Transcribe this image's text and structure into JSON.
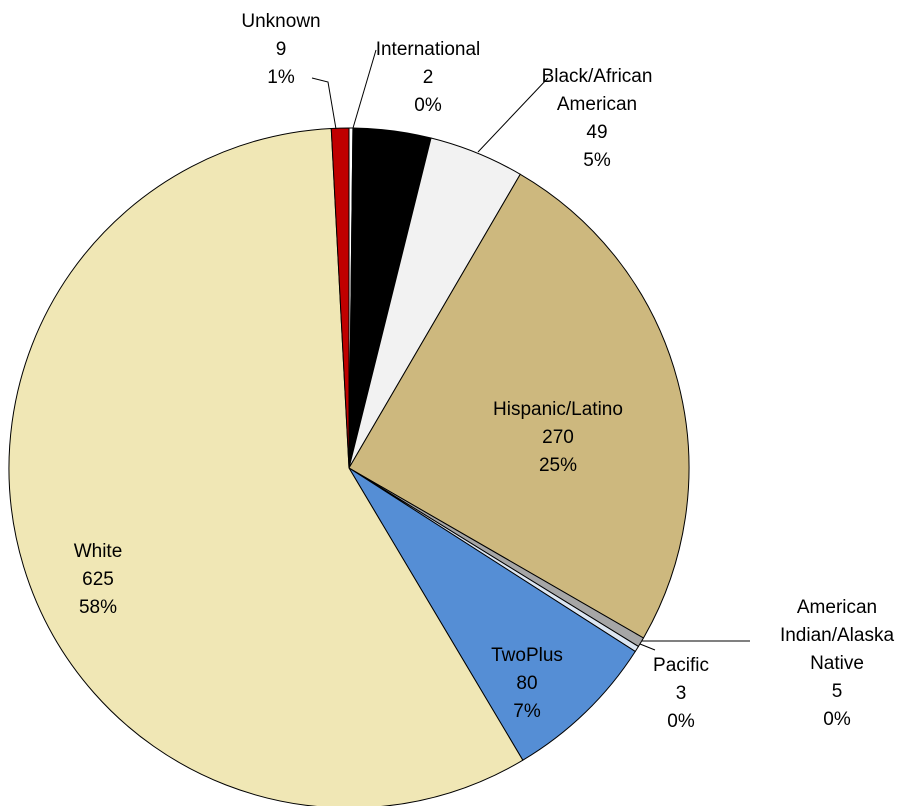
{
  "chart_data": {
    "type": "pie",
    "categories": [
      [
        "International"
      ],
      null,
      [
        "Black/African",
        "American"
      ],
      [
        "Hispanic/Latino"
      ],
      [
        "American",
        "Indian/Alaska",
        "Native"
      ],
      [
        "Pacific"
      ],
      [
        "TwoPlus"
      ],
      [
        "White"
      ],
      [
        "Unknown"
      ]
    ],
    "values": [
      2,
      40,
      49,
      270,
      5,
      3,
      80,
      625,
      9
    ],
    "percent_labels": [
      "0%",
      null,
      "5%",
      "25%",
      "0%",
      "0%",
      "7%",
      "58%",
      "1%"
    ],
    "colors": [
      "#ffffff",
      "#000000",
      "#f2f2f2",
      "#cdb87e",
      "#a6a6a6",
      "#dce6f2",
      "#558ed5",
      "#f0e7b5",
      "#c00000"
    ]
  }
}
